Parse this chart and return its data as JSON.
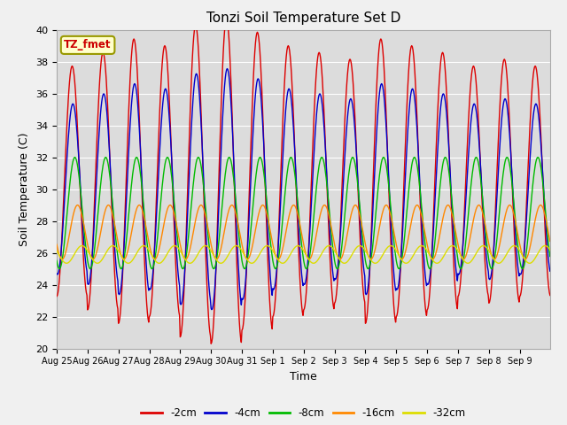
{
  "title": "Tonzi Soil Temperature Set D",
  "xlabel": "Time",
  "ylabel": "Soil Temperature (C)",
  "ylim": [
    20,
    40
  ],
  "legend_label": "TZ_fmet",
  "series_colors": {
    "-2cm": "#dd0000",
    "-4cm": "#0000cc",
    "-8cm": "#00bb00",
    "-16cm": "#ff8800",
    "-32cm": "#dddd00"
  },
  "series_labels": [
    "-2cm",
    "-4cm",
    "-8cm",
    "-16cm",
    "-32cm"
  ],
  "xtick_labels": [
    "Aug 25",
    "Aug 26",
    "Aug 27",
    "Aug 28",
    "Aug 29",
    "Aug 30",
    "Aug 31",
    "Sep 1",
    "Sep 2",
    "Sep 3",
    "Sep 4",
    "Sep 5",
    "Sep 6",
    "Sep 7",
    "Sep 8",
    "Sep 9"
  ],
  "bg_color": "#dcdcdc",
  "fig_color": "#f0f0f0",
  "grid_color": "#ffffff",
  "n_days": 16,
  "pts_per_day": 48
}
